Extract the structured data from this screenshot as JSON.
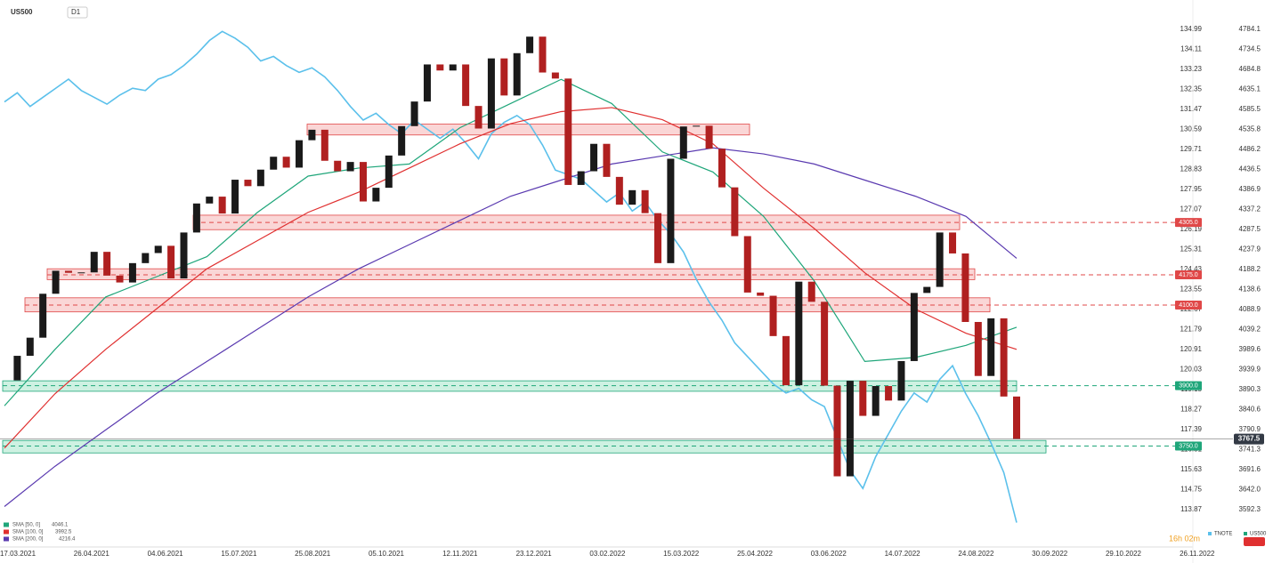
{
  "chart_data": {
    "type": "candlestick",
    "title": "US500",
    "timeframe": "D1",
    "series": [
      {
        "name": "US500",
        "up_color": "#1a1a1a",
        "down_color": "#b02020",
        "values": [
          3913,
          3974,
          4019,
          4128,
          4185,
          4180,
          4181,
          4232,
          4173,
          4156,
          4204,
          4229,
          4247,
          4166,
          4280,
          4352,
          4369,
          4327,
          4411,
          4395,
          4436,
          4468,
          4441,
          4509,
          4535,
          4458,
          4432,
          4455,
          4357,
          4391,
          4471,
          4544,
          4605,
          4697,
          4682,
          4697,
          4594,
          4538,
          4712,
          4620,
          4725,
          4766,
          4677,
          4662,
          4398,
          4432,
          4500,
          4418,
          4349,
          4385,
          4328,
          4204,
          4463,
          4543,
          4545,
          4488,
          4392,
          4271,
          4131,
          4123,
          4023,
          3901,
          4158,
          4108,
          3900,
          3675,
          3912,
          3825,
          3899,
          3863,
          3961,
          4130,
          4145,
          4280,
          4228,
          4058,
          3924,
          4067,
          3873,
          3768
        ]
      },
      {
        "name": "TNOTE",
        "color": "#5bc0eb",
        "axis": "y2",
        "values": [
          131.8,
          132.2,
          131.6,
          132.0,
          132.4,
          132.8,
          132.3,
          132.0,
          131.7,
          132.1,
          132.4,
          132.3,
          132.8,
          133.0,
          133.4,
          133.9,
          134.5,
          134.9,
          134.6,
          134.2,
          133.6,
          133.8,
          133.4,
          133.1,
          133.3,
          132.9,
          132.3,
          131.6,
          131.0,
          131.3,
          130.8,
          130.4,
          131.0,
          130.6,
          130.2,
          130.6,
          130.0,
          129.3,
          130.4,
          130.9,
          131.2,
          130.8,
          129.9,
          128.8,
          128.6,
          128.4,
          127.9,
          127.4,
          127.8,
          127.0,
          127.4,
          126.6,
          126.0,
          125.2,
          124.0,
          123.0,
          122.2,
          121.2,
          120.6,
          120.0,
          119.4,
          119.0,
          119.2,
          118.7,
          118.4,
          117.0,
          115.6,
          114.8,
          116.2,
          117.2,
          118.2,
          119.0,
          118.6,
          119.6,
          120.2,
          119.0,
          118.0,
          116.8,
          115.5,
          113.3
        ]
      }
    ],
    "indicators": [
      {
        "name": "SMA [50, 0]",
        "last": 4046.1,
        "color": "#1fa67a",
        "values": [
          3850,
          3990,
          4120,
          4170,
          4220,
          4330,
          4420,
          4440,
          4450,
          4540,
          4600,
          4660,
          4600,
          4480,
          4430,
          4320,
          4160,
          3960,
          3970,
          4000,
          4045
        ]
      },
      {
        "name": "SMA [100, 0]",
        "last": 3992.5,
        "color": "#e03030",
        "values": [
          3745,
          3880,
          3990,
          4090,
          4190,
          4260,
          4330,
          4380,
          4440,
          4500,
          4550,
          4580,
          4590,
          4560,
          4500,
          4390,
          4290,
          4180,
          4090,
          4030,
          3990
        ]
      },
      {
        "name": "SMA [200, 0]",
        "last": 4216.4,
        "color": "#5a3ab0",
        "values": [
          3600,
          3700,
          3790,
          3880,
          3960,
          4040,
          4120,
          4190,
          4250,
          4310,
          4370,
          4410,
          4450,
          4470,
          4490,
          4475,
          4450,
          4410,
          4370,
          4320,
          4216
        ]
      }
    ],
    "zones": [
      {
        "low": 4522,
        "high": 4549,
        "color": "red"
      },
      {
        "low": 4287,
        "high": 4323,
        "value": 4305,
        "value_label": "4305.0",
        "color": "red"
      },
      {
        "low": 4163,
        "high": 4190,
        "value": 4175,
        "value_label": "4175.0",
        "color": "red"
      },
      {
        "low": 4083,
        "high": 4118,
        "value": 4100,
        "value_label": "4100.0",
        "color": "red"
      },
      {
        "low": 3886,
        "high": 3912,
        "value": 3900,
        "value_label": "3900.0",
        "color": "green"
      },
      {
        "low": 3733,
        "high": 3764,
        "value": 3750,
        "value_label": "3750.0",
        "color": "green"
      }
    ],
    "current_price": 3767.5,
    "countdown": "16h 02m",
    "ylim": [
      3592.3,
      4784.1
    ],
    "yticks": [
      4784.1,
      4734.5,
      4684.8,
      4635.1,
      4585.5,
      4535.8,
      4486.2,
      4436.5,
      4386.9,
      4337.2,
      4287.5,
      4237.9,
      4188.2,
      4138.6,
      4088.9,
      4039.2,
      3989.6,
      3939.9,
      3890.3,
      3840.6,
      3790.9,
      3741.3,
      3691.6,
      {
        "value": 3642.0,
        "label": "3642.0"
      },
      3592.3
    ],
    "y2lim": [
      113.87,
      134.99
    ],
    "y2ticks": [
      134.99,
      134.11,
      133.23,
      132.35,
      131.47,
      130.59,
      129.71,
      128.83,
      127.95,
      127.07,
      126.19,
      125.31,
      124.43,
      123.55,
      122.67,
      121.79,
      120.91,
      120.03,
      119.15,
      118.27,
      117.39,
      116.51,
      115.63,
      114.75,
      113.87
    ],
    "xtick_labels": [
      "17.03.2021",
      "26.04.2021",
      "04.06.2021",
      "15.07.2021",
      "25.08.2021",
      "05.10.2021",
      "12.11.2021",
      "23.12.2021",
      "03.02.2022",
      "15.03.2022",
      "25.04.2022",
      "03.06.2022",
      "14.07.2022",
      "24.08.2022",
      "30.09.2022",
      "29.10.2022",
      "26.11.2022"
    ]
  }
}
